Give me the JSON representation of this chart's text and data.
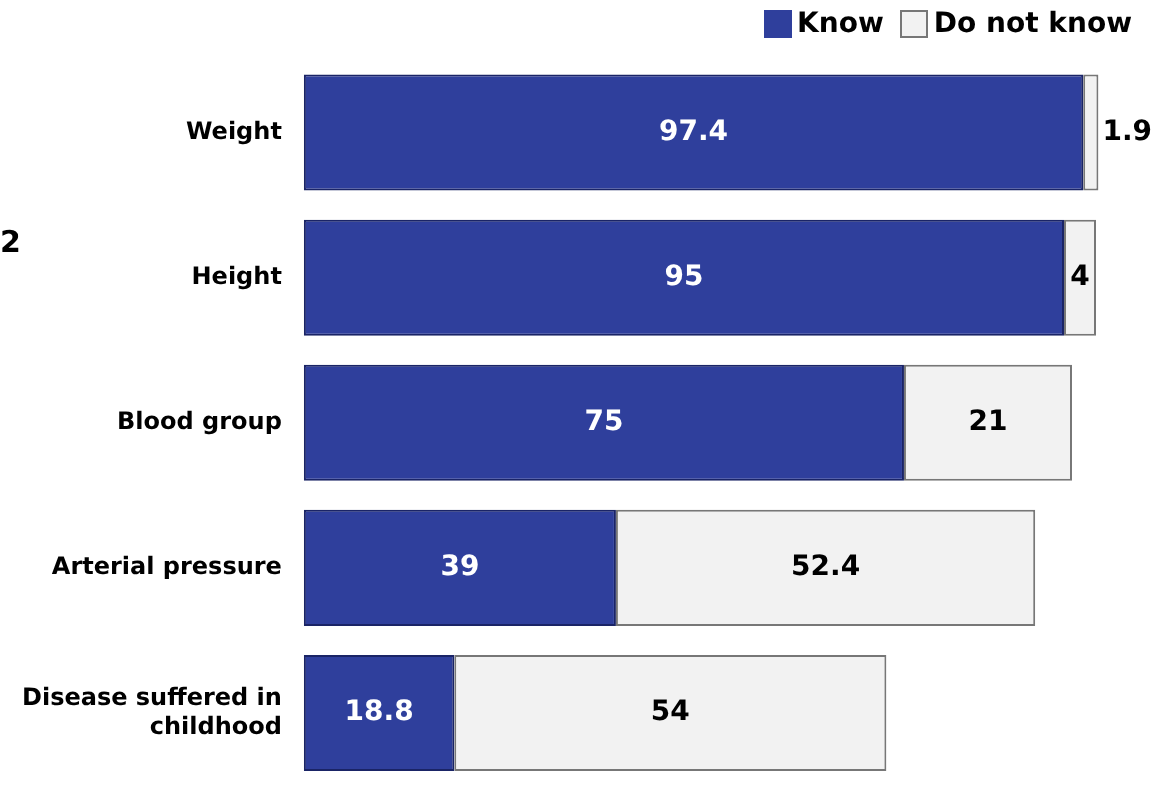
{
  "chart_data": {
    "type": "bar",
    "orientation": "horizontal",
    "stacked": true,
    "categories": [
      "Weight",
      "Height",
      "Blood group",
      "Arterial pressure",
      "Disease suffered in childhood"
    ],
    "series": [
      {
        "name": "Know",
        "color": "#2f3f9c",
        "values": [
          97.4,
          95,
          75,
          39,
          18.8
        ]
      },
      {
        "name": "Do not know",
        "color": "#f2f2f2",
        "values": [
          1.9,
          4,
          21,
          52.4,
          54
        ]
      }
    ],
    "data_labels": true,
    "legend": "top",
    "tick_labels": "y",
    "annotations": [
      "2"
    ]
  }
}
